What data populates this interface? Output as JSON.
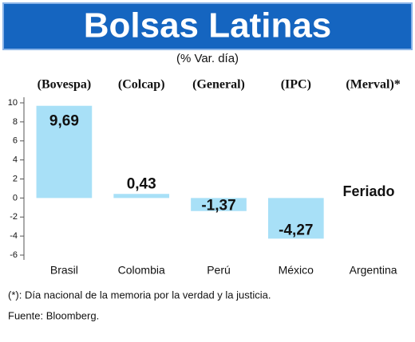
{
  "chart_data": {
    "type": "bar",
    "title": "Bolsas Latinas",
    "subtitle": "(% Var. día)",
    "categories": [
      "Brasil",
      "Colombia",
      "Perú",
      "México",
      "Argentina"
    ],
    "index_labels": [
      "(Bovespa)",
      "(Colcap)",
      "(General)",
      "(IPC)",
      "(Merval)*"
    ],
    "values": [
      9.69,
      0.43,
      -1.37,
      -4.27,
      null
    ],
    "value_labels": [
      "9,69",
      "0,43",
      "-1,37",
      "-4,27",
      null
    ],
    "annotation": "Feriado",
    "color": "#a8e0f7",
    "ylim": [
      -6,
      10
    ],
    "yticks": [
      10,
      8,
      6,
      4,
      2,
      0,
      -2,
      -4,
      -6
    ],
    "footnote": "(*):  Día nacional de la memoria por la verdad y la justicia.",
    "source": "Fuente: Bloomberg."
  }
}
